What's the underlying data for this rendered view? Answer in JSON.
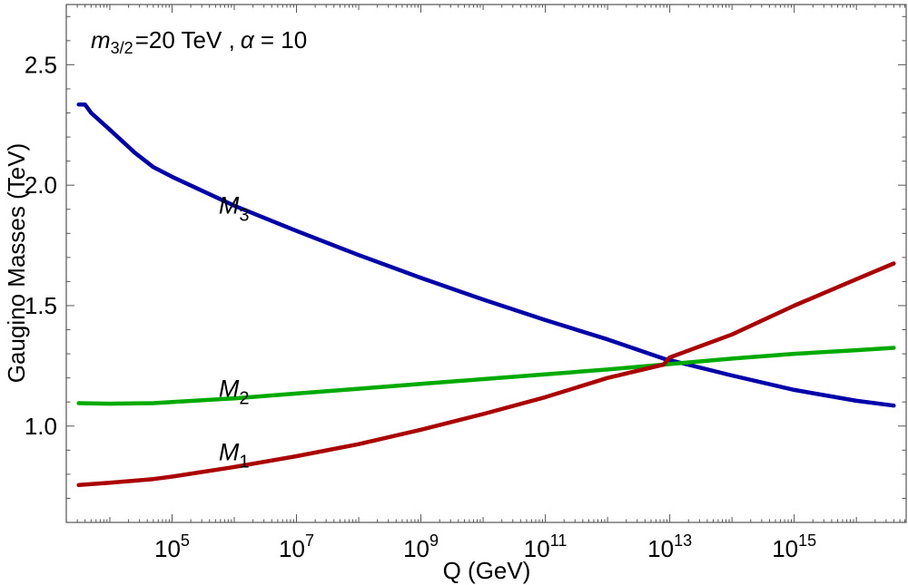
{
  "chart_data": {
    "type": "line",
    "title": "",
    "annotation": {
      "mass_symbol": "m",
      "mass_subscript": "3/2",
      "mass_value": "=20 TeV ,",
      "alpha_symbol": "α",
      "alpha_value": " = 10"
    },
    "xlabel": "Q (GeV)",
    "ylabel": "Gaugino Masses (TeV)",
    "x_scale": "log10",
    "xlim_log10": [
      3.3,
      16.8
    ],
    "ylim": [
      0.6,
      2.75
    ],
    "grid": false,
    "x_ticks": [
      {
        "log10": 5,
        "base": "10",
        "exp": "5"
      },
      {
        "log10": 7,
        "base": "10",
        "exp": "7"
      },
      {
        "log10": 9,
        "base": "10",
        "exp": "9"
      },
      {
        "log10": 11,
        "base": "10",
        "exp": "11"
      },
      {
        "log10": 13,
        "base": "10",
        "exp": "13"
      },
      {
        "log10": 15,
        "base": "10",
        "exp": "15"
      }
    ],
    "y_ticks": [
      {
        "value": 1.0,
        "label": "1.0"
      },
      {
        "value": 1.5,
        "label": "1.5"
      },
      {
        "value": 2.0,
        "label": "2.0"
      },
      {
        "value": 2.5,
        "label": "2.5"
      }
    ],
    "series": [
      {
        "name": "M3",
        "label_base": "M",
        "label_sub": "3",
        "color": "#0000aa",
        "label_at": {
          "log10Q": 5.75,
          "value": 1.92
        },
        "points": [
          [
            3.5,
            2.335
          ],
          [
            3.6,
            2.335
          ],
          [
            3.7,
            2.3
          ],
          [
            4.0,
            2.23
          ],
          [
            4.4,
            2.135
          ],
          [
            4.7,
            2.075
          ],
          [
            5.0,
            2.035
          ],
          [
            6.0,
            1.915
          ],
          [
            7.0,
            1.81
          ],
          [
            8.0,
            1.71
          ],
          [
            9.0,
            1.615
          ],
          [
            10.0,
            1.525
          ],
          [
            11.0,
            1.44
          ],
          [
            12.0,
            1.36
          ],
          [
            12.9,
            1.28
          ],
          [
            14.0,
            1.21
          ],
          [
            15.0,
            1.15
          ],
          [
            16.0,
            1.105
          ],
          [
            16.6,
            1.085
          ]
        ]
      },
      {
        "name": "M2",
        "label_base": "M",
        "label_sub": "2",
        "color": "#00aa00",
        "label_at": {
          "log10Q": 5.75,
          "value": 1.16
        },
        "points": [
          [
            3.5,
            1.095
          ],
          [
            4.0,
            1.093
          ],
          [
            4.7,
            1.095
          ],
          [
            6.0,
            1.115
          ],
          [
            7.0,
            1.135
          ],
          [
            8.0,
            1.155
          ],
          [
            9.0,
            1.175
          ],
          [
            10.0,
            1.195
          ],
          [
            11.0,
            1.215
          ],
          [
            12.0,
            1.235
          ],
          [
            12.9,
            1.255
          ],
          [
            14.0,
            1.28
          ],
          [
            15.0,
            1.3
          ],
          [
            16.0,
            1.315
          ],
          [
            16.6,
            1.325
          ]
        ]
      },
      {
        "name": "M1",
        "label_base": "M",
        "label_sub": "1",
        "color": "#aa0000",
        "label_at": {
          "log10Q": 5.75,
          "value": 0.895
        },
        "points": [
          [
            3.5,
            0.755
          ],
          [
            4.0,
            0.765
          ],
          [
            4.7,
            0.78
          ],
          [
            5.0,
            0.79
          ],
          [
            6.0,
            0.83
          ],
          [
            7.0,
            0.875
          ],
          [
            8.0,
            0.925
          ],
          [
            9.0,
            0.985
          ],
          [
            10.0,
            1.05
          ],
          [
            11.0,
            1.12
          ],
          [
            12.0,
            1.2
          ],
          [
            12.9,
            1.255
          ],
          [
            13.0,
            1.285
          ],
          [
            14.0,
            1.38
          ],
          [
            15.0,
            1.5
          ],
          [
            16.0,
            1.61
          ],
          [
            16.6,
            1.675
          ]
        ]
      }
    ]
  }
}
